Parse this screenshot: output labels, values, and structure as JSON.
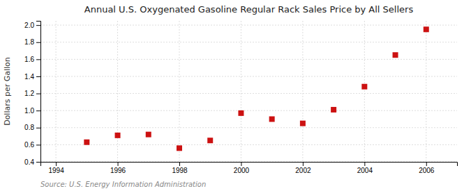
{
  "chart_data": {
    "type": "scatter",
    "title": "Annual U.S. Oxygenated Gasoline Regular Rack Sales Price by All Sellers",
    "ylabel": "Dollars per Gallon",
    "source": "Source: U.S. Energy Information Administration",
    "x": [
      1995,
      1996,
      1997,
      1998,
      1999,
      2000,
      2001,
      2002,
      2003,
      2004,
      2005,
      2006
    ],
    "values": [
      0.63,
      0.71,
      0.72,
      0.56,
      0.65,
      0.97,
      0.9,
      0.85,
      1.01,
      1.28,
      1.65,
      1.95
    ],
    "color": "#cc1111",
    "marker": "square",
    "xlim": [
      1993.5,
      2007
    ],
    "ylim": [
      0.4,
      2.05
    ],
    "xticks": [
      1994,
      1996,
      1998,
      2000,
      2002,
      2004,
      2006
    ],
    "yticks": [
      0.4,
      0.6,
      0.8,
      {
        "value": 1.0,
        "label": "1.0"
      },
      1.2,
      1.4,
      1.6,
      1.8,
      {
        "value": 2.0,
        "label": "2.0"
      }
    ],
    "grid": true
  }
}
